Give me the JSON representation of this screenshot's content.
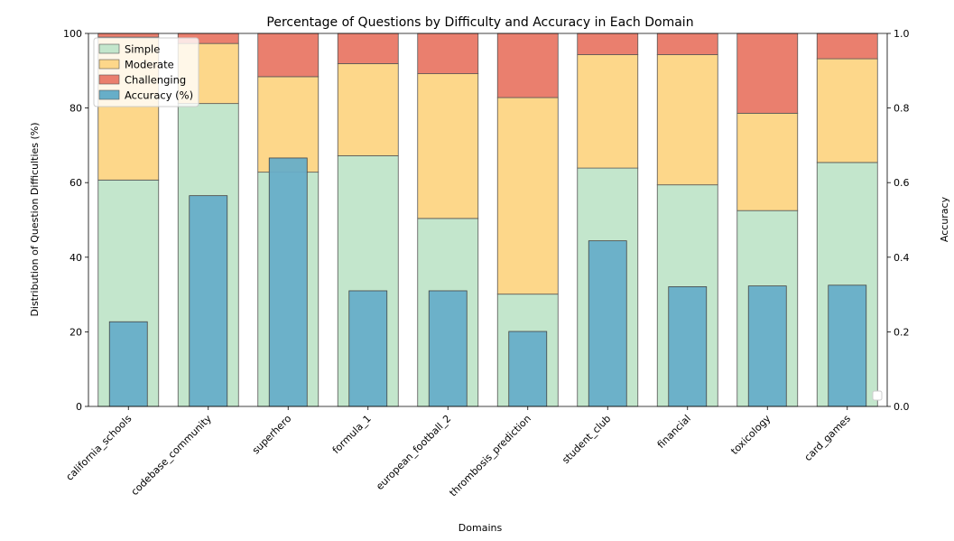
{
  "chart_data": {
    "type": "bar",
    "title": "Percentage of Questions by Difficulty and Accuracy in Each Domain",
    "xlabel": "Domains",
    "ylabel": "Distribution of Question Difficulties (%)",
    "y2label": "Accuracy",
    "ylim": [
      0,
      100
    ],
    "y2lim": [
      0,
      1.0
    ],
    "yticks": [
      "0",
      "20",
      "40",
      "60",
      "80",
      "100"
    ],
    "y2ticks": [
      "0.0",
      "0.2",
      "0.4",
      "0.6",
      "0.8",
      "1.0"
    ],
    "categories": [
      "california_schools",
      "codebase_community",
      "superhero",
      "formula_1",
      "european_football_2",
      "thrombosis_prediction",
      "student_club",
      "financial",
      "toxicology",
      "card_games"
    ],
    "series": [
      {
        "name": "Simple",
        "color": "#c3e6cc",
        "values": [
          60.7,
          81.2,
          62.8,
          67.2,
          50.4,
          30.1,
          63.9,
          59.4,
          52.5,
          65.4
        ]
      },
      {
        "name": "Moderate",
        "color": "#fdd78a",
        "values": [
          38.3,
          16.1,
          25.6,
          24.7,
          38.8,
          52.7,
          30.4,
          34.9,
          26.1,
          27.8
        ]
      },
      {
        "name": "Challenging",
        "color": "#ea7f6e",
        "values": [
          1.0,
          2.7,
          11.6,
          8.1,
          10.8,
          17.2,
          5.7,
          5.7,
          21.4,
          6.8
        ]
      }
    ],
    "accuracy": {
      "name": "Accuracy (%)",
      "color": "#67aec8",
      "values": [
        0.227,
        0.565,
        0.666,
        0.31,
        0.31,
        0.201,
        0.444,
        0.321,
        0.323,
        0.325
      ]
    },
    "legend_position": "top-left"
  }
}
